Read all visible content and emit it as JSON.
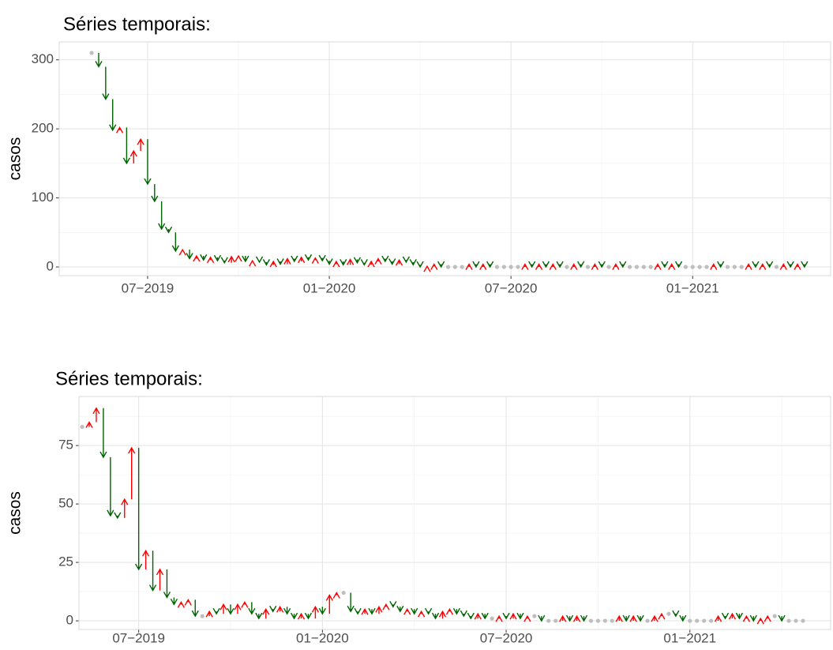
{
  "chart_data": [
    {
      "type": "arrow",
      "title": "Séries temporais:",
      "y_label": "casos",
      "categories": [
        null,
        null,
        null,
        null,
        null,
        null,
        null,
        null,
        "07−2019",
        null,
        null,
        null,
        null,
        null,
        null,
        null,
        null,
        null,
        null,
        null,
        null,
        null,
        null,
        null,
        null,
        null,
        null,
        null,
        null,
        null,
        null,
        null,
        null,
        null,
        "01−2020",
        null,
        null,
        null,
        null,
        null,
        null,
        null,
        null,
        null,
        null,
        null,
        null,
        null,
        null,
        null,
        null,
        null,
        null,
        null,
        null,
        null,
        null,
        null,
        null,
        null,
        "07−2020",
        null,
        null,
        null,
        null,
        null,
        null,
        null,
        null,
        null,
        null,
        null,
        null,
        null,
        null,
        null,
        null,
        null,
        null,
        null,
        null,
        null,
        null,
        null,
        null,
        null,
        "01−2021",
        null,
        null,
        null,
        null,
        null,
        null,
        null,
        null,
        null,
        null,
        null,
        null,
        null,
        null,
        null,
        null
      ],
      "values": [
        310,
        290,
        243,
        198,
        202,
        150,
        168,
        185,
        120,
        95,
        55,
        50,
        23,
        25,
        12,
        16,
        10,
        14,
        9,
        6,
        15,
        16,
        8,
        9,
        7,
        3,
        8,
        4,
        12,
        8,
        14,
        10,
        13,
        9,
        4,
        8,
        3,
        11,
        6,
        3,
        8,
        12,
        8,
        4,
        10,
        7,
        3,
        0,
        1,
        4,
        0,
        0,
        0,
        0,
        4,
        0,
        4,
        0,
        0,
        0,
        0,
        0,
        4,
        0,
        4,
        0,
        4,
        0,
        0,
        4,
        0,
        0,
        4,
        0,
        0,
        4,
        0,
        0,
        0,
        0,
        0,
        4,
        0,
        4,
        0,
        0,
        0,
        0,
        0,
        4,
        0,
        0,
        0,
        0,
        4,
        0,
        4,
        0,
        0,
        4,
        0,
        4,
        0
      ],
      "ylim": [
        -12.6,
        326
      ],
      "yticks": [
        0,
        100,
        200,
        300
      ],
      "grid": true,
      "up_color": "#ff0000",
      "down_color": "#006400",
      "same_color": "#bebebe"
    },
    {
      "type": "arrow",
      "title": "Séries temporais:",
      "y_label": "casos",
      "categories": [
        null,
        null,
        null,
        null,
        null,
        null,
        null,
        null,
        "07−2019",
        null,
        null,
        null,
        null,
        null,
        null,
        null,
        null,
        null,
        null,
        null,
        null,
        null,
        null,
        null,
        null,
        null,
        null,
        null,
        null,
        null,
        null,
        null,
        null,
        null,
        "01−2020",
        null,
        null,
        null,
        null,
        null,
        null,
        null,
        null,
        null,
        null,
        null,
        null,
        null,
        null,
        null,
        null,
        null,
        null,
        null,
        null,
        null,
        null,
        null,
        null,
        null,
        "07−2020",
        null,
        null,
        null,
        null,
        null,
        null,
        null,
        null,
        null,
        null,
        null,
        null,
        null,
        null,
        null,
        null,
        null,
        null,
        null,
        null,
        null,
        null,
        null,
        null,
        null,
        "01−2021",
        null,
        null,
        null,
        null,
        null,
        null,
        null,
        null,
        null,
        null,
        null,
        null,
        null,
        null,
        null,
        null
      ],
      "values": [
        83,
        85,
        91,
        70,
        45,
        44,
        52,
        74,
        22,
        30,
        13,
        22,
        10,
        7,
        8,
        9,
        2,
        2,
        4,
        3,
        7,
        3,
        7,
        8,
        3,
        1,
        5,
        4,
        6,
        3,
        1,
        3,
        1,
        6,
        3,
        11,
        12,
        12,
        4,
        3,
        5,
        3,
        6,
        7,
        6,
        4,
        5,
        3,
        4,
        3,
        1,
        4,
        5,
        3,
        2,
        1,
        3,
        1,
        1,
        2,
        1,
        3,
        1,
        2,
        2,
        0,
        0,
        0,
        2,
        0,
        2,
        0,
        0,
        0,
        0,
        0,
        2,
        0,
        2,
        0,
        0,
        2,
        3,
        3,
        2,
        0,
        0,
        0,
        0,
        0,
        2,
        1,
        3,
        1,
        2,
        0,
        1,
        2,
        2,
        0,
        0,
        0,
        0
      ],
      "ylim": [
        -3.7,
        96
      ],
      "yticks": [
        0,
        25,
        50,
        75
      ],
      "grid": true,
      "up_color": "#ff0000",
      "down_color": "#006400",
      "same_color": "#bebebe"
    }
  ]
}
